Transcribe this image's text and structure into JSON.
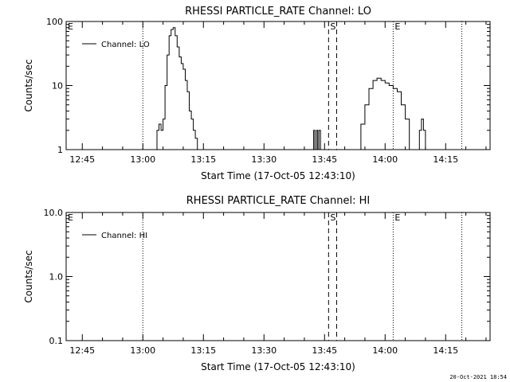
{
  "footer": {
    "timestamp": "20-Oct-2021 18:54"
  },
  "chart_data": [
    {
      "type": "line",
      "title": "RHESSI PARTICLE_RATE Channel: LO",
      "xlabel": "Start Time (17-Oct-05 12:43:10)",
      "ylabel": "Counts/sec",
      "y_scale": "log",
      "ylim": [
        1,
        100
      ],
      "y_ticks": [
        "1",
        "10",
        "100"
      ],
      "xlim": [
        "12:41",
        "14:26"
      ],
      "x_ticks": [
        "12:45",
        "13:00",
        "13:15",
        "13:30",
        "13:45",
        "14:00",
        "14:15"
      ],
      "legend": {
        "position": "top-left",
        "entries": [
          "Channel: LO"
        ]
      },
      "markers": [
        {
          "label": "E",
          "time": "12:41",
          "style": "dotted"
        },
        {
          "label": "",
          "time": "13:00",
          "style": "dotted"
        },
        {
          "label": "S",
          "time": "13:46",
          "style": "dashed"
        },
        {
          "label": "",
          "time": "13:48",
          "style": "dashed"
        },
        {
          "label": "E",
          "time": "14:02",
          "style": "dotted"
        },
        {
          "label": "",
          "time": "14:19",
          "style": "dotted"
        }
      ],
      "series": [
        {
          "name": "Channel: LO",
          "segments": [
            {
              "x": [
                "13:03",
                "13:03.5",
                "13:04",
                "13:04.5",
                "13:05",
                "13:05.5",
                "13:06",
                "13:06.5",
                "13:07",
                "13:07.5",
                "13:08",
                "13:08.5",
                "13:09",
                "13:09.5",
                "13:10",
                "13:10.5",
                "13:11",
                "13:11.5",
                "13:12",
                "13:12.5",
                "13:13",
                "13:13.5"
              ],
              "y": [
                1,
                2,
                2.5,
                2,
                3,
                10,
                30,
                60,
                75,
                80,
                60,
                40,
                28,
                22,
                18,
                12,
                8,
                4,
                3,
                2,
                1.5,
                1
              ]
            },
            {
              "x": [
                "13:42",
                "13:42.3",
                "13:42.6",
                "13:43",
                "13:43.3",
                "13:43.6",
                "13:44"
              ],
              "y": [
                1,
                2,
                1,
                2,
                1,
                2,
                1
              ]
            },
            {
              "x": [
                "13:53",
                "13:54",
                "13:55",
                "13:56",
                "13:57",
                "13:58",
                "13:59",
                "14:00",
                "14:01",
                "14:02",
                "14:03",
                "14:04",
                "14:05",
                "14:06"
              ],
              "y": [
                1,
                2.5,
                5,
                9,
                12,
                13,
                12,
                11,
                10,
                9,
                8,
                5,
                3,
                1
              ]
            },
            {
              "x": [
                "14:08",
                "14:08.5",
                "14:09",
                "14:09.5",
                "14:10"
              ],
              "y": [
                1,
                2,
                3,
                2,
                1
              ]
            }
          ]
        }
      ]
    },
    {
      "type": "line",
      "title": "RHESSI PARTICLE_RATE Channel: HI",
      "xlabel": "Start Time (17-Oct-05 12:43:10)",
      "ylabel": "Counts/sec",
      "y_scale": "log",
      "ylim": [
        0.1,
        10
      ],
      "y_ticks": [
        "0.1",
        "1.0",
        "10.0"
      ],
      "xlim": [
        "12:41",
        "14:26"
      ],
      "x_ticks": [
        "12:45",
        "13:00",
        "13:15",
        "13:30",
        "13:45",
        "14:00",
        "14:15"
      ],
      "legend": {
        "position": "top-left",
        "entries": [
          "Channel: HI"
        ]
      },
      "markers": [
        {
          "label": "E",
          "time": "12:41",
          "style": "dotted"
        },
        {
          "label": "",
          "time": "13:00",
          "style": "dotted"
        },
        {
          "label": "S",
          "time": "13:46",
          "style": "dashed"
        },
        {
          "label": "",
          "time": "13:48",
          "style": "dashed"
        },
        {
          "label": "E",
          "time": "14:02",
          "style": "dotted"
        },
        {
          "label": "",
          "time": "14:19",
          "style": "dotted"
        }
      ],
      "series": [
        {
          "name": "Channel: HI",
          "segments": []
        }
      ]
    }
  ]
}
